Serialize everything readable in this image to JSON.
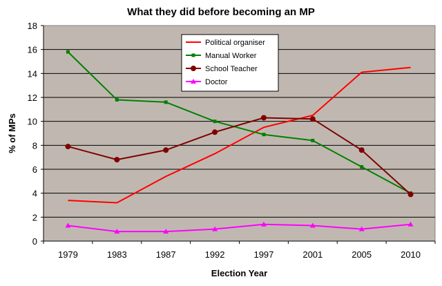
{
  "chart_data": {
    "type": "line",
    "title": "What they did before becoming an MP",
    "xlabel": "Election Year",
    "ylabel": "% of MPs",
    "categories": [
      "1979",
      "1983",
      "1987",
      "1992",
      "1997",
      "2001",
      "2005",
      "2010"
    ],
    "ylim": [
      0,
      18
    ],
    "yticks": [
      0,
      2,
      4,
      6,
      8,
      10,
      12,
      14,
      16,
      18
    ],
    "grid": true,
    "legend_position": "top-center",
    "plot_background": "#c0b8b0",
    "series": [
      {
        "name": "Political organiser",
        "color": "#ff0000",
        "marker": "none",
        "values": [
          3.4,
          3.2,
          5.4,
          7.3,
          9.5,
          10.5,
          14.1,
          14.5
        ]
      },
      {
        "name": "Manual Worker",
        "color": "#008000",
        "marker": "square",
        "values": [
          15.8,
          11.8,
          11.6,
          10.0,
          8.9,
          8.4,
          6.2,
          4.0
        ]
      },
      {
        "name": "School Teacher",
        "color": "#800000",
        "marker": "circle",
        "values": [
          7.9,
          6.8,
          7.6,
          9.1,
          10.3,
          10.2,
          7.6,
          3.9
        ]
      },
      {
        "name": "Doctor",
        "color": "#ff00ff",
        "marker": "triangle",
        "values": [
          1.3,
          0.8,
          0.8,
          1.0,
          1.4,
          1.3,
          1.0,
          1.4
        ]
      }
    ]
  }
}
